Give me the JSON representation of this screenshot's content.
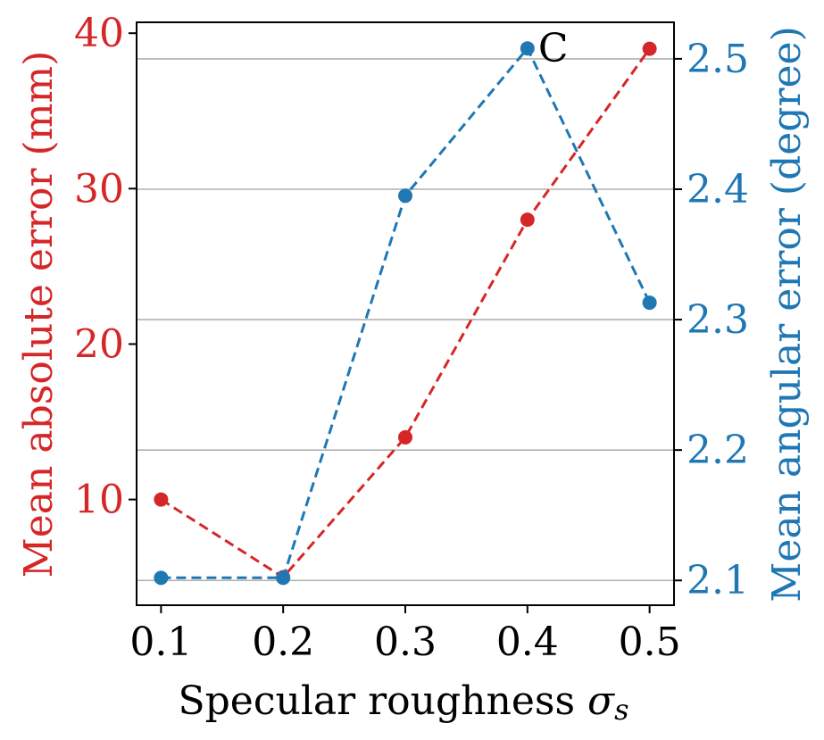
{
  "chart_data": {
    "type": "line",
    "xlabel": "Specular roughness",
    "xlabel_symbol": "σ",
    "xlabel_subscript": "s",
    "x": [
      0.1,
      0.2,
      0.3,
      0.4,
      0.5
    ],
    "x_ticks": [
      "0.1",
      "0.2",
      "0.3",
      "0.4",
      "0.5"
    ],
    "xlim": [
      0.08,
      0.52
    ],
    "annotation": "C",
    "grid": "horizontal (right axis)",
    "left_axis": {
      "label": "Mean absolute error (mm)",
      "color": "#d62728",
      "ticks": [
        "10",
        "20",
        "30",
        "40"
      ],
      "tick_values": [
        10,
        20,
        30,
        40
      ],
      "ylim": [
        3.2,
        40.7
      ],
      "values": [
        10,
        5,
        14,
        28,
        39
      ]
    },
    "right_axis": {
      "label": "Mean angular error (degree)",
      "color": "#1f77b4",
      "ticks": [
        "2.1",
        "2.2",
        "2.3",
        "2.4",
        "2.5"
      ],
      "tick_values": [
        2.1,
        2.2,
        2.3,
        2.4,
        2.5
      ],
      "ylim": [
        2.081,
        2.528
      ],
      "values": [
        2.102,
        2.102,
        2.395,
        2.508,
        2.313
      ]
    }
  }
}
